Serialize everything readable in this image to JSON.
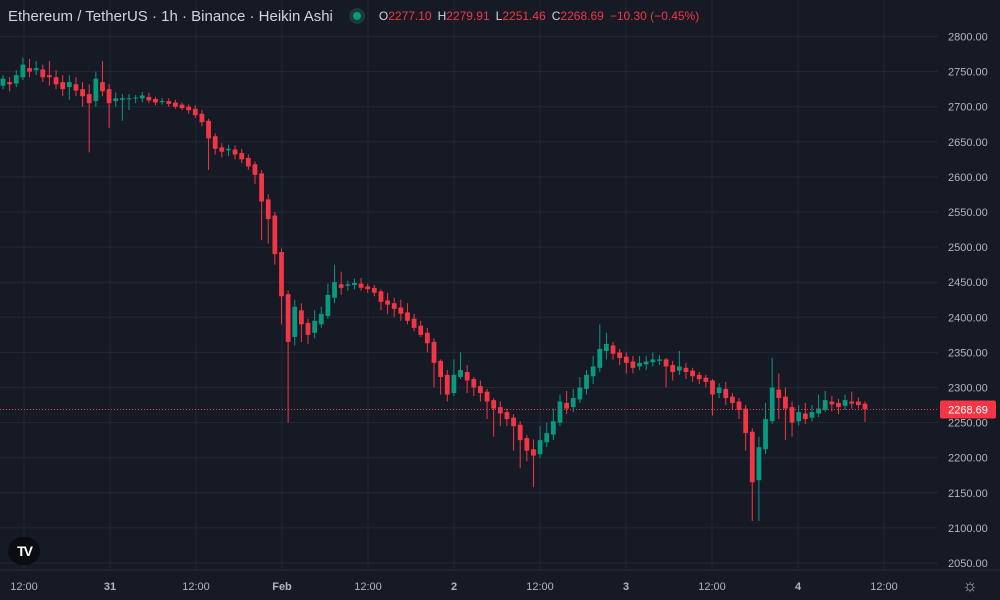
{
  "header": {
    "symbol_title": "Ethereum / TetherUS · 1h · Binance · Heikin Ashi",
    "ohlc": {
      "open_key": "O",
      "open": "2277.10",
      "high_key": "H",
      "high": "2279.91",
      "low_key": "L",
      "low": "2251.46",
      "close_key": "C",
      "close": "2268.69",
      "change": "−10.30 (−0.45%)"
    }
  },
  "colors": {
    "background": "#161a25",
    "grid": "#232734",
    "up": "#089981",
    "down": "#f23645",
    "text": "#d1d4dc",
    "axis_text": "#b2b5be"
  },
  "icons": {
    "logo": "tradingview-logo-icon",
    "settings": "gear-icon",
    "status": "live-dot-icon"
  },
  "chart_data": {
    "type": "candlestick",
    "style": "heikin-ashi",
    "interval": "1h",
    "y_axis": {
      "range": [
        2040,
        2815
      ],
      "ticks": [
        "2800.00",
        "2750.00",
        "2700.00",
        "2650.00",
        "2600.00",
        "2550.00",
        "2500.00",
        "2450.00",
        "2400.00",
        "2350.00",
        "2300.00",
        "2250.00",
        "2200.00",
        "2150.00",
        "2100.00",
        "2050.00"
      ],
      "scale": "linear",
      "position": "right"
    },
    "x_axis": {
      "ticks": [
        "12:00",
        "31",
        "12:00",
        "Feb",
        "12:00",
        "2",
        "12:00",
        "3",
        "12:00",
        "4",
        "12:00"
      ],
      "bold_ticks": [
        "31",
        "Feb",
        "2",
        "3",
        "4"
      ]
    },
    "last_price": "2268.69",
    "grid": true,
    "candles": [
      [
        2730,
        2740,
        2745,
        2725
      ],
      [
        2735,
        2732,
        2742,
        2722
      ],
      [
        2733,
        2745,
        2752,
        2728
      ],
      [
        2742,
        2760,
        2770,
        2738
      ],
      [
        2755,
        2750,
        2768,
        2742
      ],
      [
        2752,
        2755,
        2765,
        2745
      ],
      [
        2753,
        2742,
        2760,
        2735
      ],
      [
        2745,
        2742,
        2765,
        2730
      ],
      [
        2742,
        2732,
        2752,
        2725
      ],
      [
        2735,
        2725,
        2745,
        2715
      ],
      [
        2728,
        2735,
        2745,
        2710
      ],
      [
        2732,
        2723,
        2742,
        2715
      ],
      [
        2725,
        2715,
        2735,
        2700
      ],
      [
        2718,
        2705,
        2732,
        2635
      ],
      [
        2708,
        2740,
        2750,
        2700
      ],
      [
        2735,
        2722,
        2765,
        2715
      ],
      [
        2725,
        2705,
        2732,
        2670
      ],
      [
        2708,
        2712,
        2720,
        2700
      ],
      [
        2710,
        2712,
        2718,
        2680
      ],
      [
        2711,
        2712,
        2718,
        2695
      ],
      [
        2712,
        2713,
        2717,
        2705
      ],
      [
        2712,
        2716,
        2721,
        2706
      ],
      [
        2714,
        2709,
        2720,
        2705
      ],
      [
        2711,
        2706,
        2714,
        2702
      ],
      [
        2708,
        2708,
        2712,
        2703
      ],
      [
        2708,
        2704,
        2712,
        2700
      ],
      [
        2706,
        2700,
        2710,
        2697
      ],
      [
        2703,
        2698,
        2706,
        2695
      ],
      [
        2700,
        2695,
        2703,
        2690
      ],
      [
        2697,
        2688,
        2702,
        2684
      ],
      [
        2690,
        2678,
        2695,
        2672
      ],
      [
        2680,
        2655,
        2683,
        2610
      ],
      [
        2658,
        2640,
        2662,
        2632
      ],
      [
        2642,
        2636,
        2648,
        2628
      ],
      [
        2638,
        2640,
        2646,
        2630
      ],
      [
        2639,
        2632,
        2645,
        2625
      ],
      [
        2634,
        2625,
        2640,
        2620
      ],
      [
        2627,
        2615,
        2632,
        2610
      ],
      [
        2618,
        2603,
        2622,
        2590
      ],
      [
        2605,
        2565,
        2610,
        2510
      ],
      [
        2568,
        2540,
        2575,
        2505
      ],
      [
        2545,
        2490,
        2550,
        2475
      ],
      [
        2493,
        2430,
        2498,
        2390
      ],
      [
        2433,
        2365,
        2438,
        2250
      ],
      [
        2372,
        2415,
        2425,
        2360
      ],
      [
        2410,
        2390,
        2420,
        2365
      ],
      [
        2392,
        2375,
        2398,
        2362
      ],
      [
        2378,
        2395,
        2410,
        2370
      ],
      [
        2390,
        2405,
        2415,
        2385
      ],
      [
        2402,
        2432,
        2448,
        2398
      ],
      [
        2428,
        2450,
        2475,
        2420
      ],
      [
        2447,
        2442,
        2465,
        2432
      ],
      [
        2445,
        2447,
        2452,
        2438
      ],
      [
        2446,
        2449,
        2455,
        2440
      ],
      [
        2448,
        2442,
        2456,
        2438
      ],
      [
        2444,
        2440,
        2448,
        2435
      ],
      [
        2442,
        2435,
        2446,
        2430
      ],
      [
        2437,
        2422,
        2440,
        2410
      ],
      [
        2424,
        2418,
        2435,
        2405
      ],
      [
        2420,
        2412,
        2428,
        2400
      ],
      [
        2414,
        2405,
        2425,
        2395
      ],
      [
        2407,
        2395,
        2420,
        2390
      ],
      [
        2398,
        2385,
        2405,
        2380
      ],
      [
        2388,
        2375,
        2395,
        2372
      ],
      [
        2378,
        2363,
        2385,
        2350
      ],
      [
        2365,
        2335,
        2370,
        2300
      ],
      [
        2338,
        2315,
        2340,
        2290
      ],
      [
        2318,
        2290,
        2325,
        2280
      ],
      [
        2292,
        2318,
        2340,
        2288
      ],
      [
        2315,
        2325,
        2350,
        2312
      ],
      [
        2322,
        2310,
        2332,
        2292
      ],
      [
        2312,
        2300,
        2315,
        2288
      ],
      [
        2302,
        2292,
        2310,
        2280
      ],
      [
        2294,
        2280,
        2298,
        2255
      ],
      [
        2282,
        2270,
        2285,
        2230
      ],
      [
        2272,
        2263,
        2280,
        2245
      ],
      [
        2265,
        2255,
        2270,
        2245
      ],
      [
        2257,
        2245,
        2262,
        2210
      ],
      [
        2247,
        2225,
        2252,
        2185
      ],
      [
        2228,
        2210,
        2232,
        2195
      ],
      [
        2212,
        2203,
        2226,
        2158
      ],
      [
        2205,
        2225,
        2245,
        2200
      ],
      [
        2222,
        2235,
        2250,
        2215
      ],
      [
        2233,
        2252,
        2270,
        2225
      ],
      [
        2250,
        2280,
        2290,
        2245
      ],
      [
        2278,
        2270,
        2295,
        2262
      ],
      [
        2272,
        2285,
        2298,
        2265
      ],
      [
        2283,
        2300,
        2315,
        2278
      ],
      [
        2298,
        2318,
        2325,
        2290
      ],
      [
        2316,
        2330,
        2345,
        2305
      ],
      [
        2328,
        2355,
        2390,
        2322
      ],
      [
        2352,
        2362,
        2378,
        2340
      ],
      [
        2360,
        2348,
        2365,
        2340
      ],
      [
        2350,
        2342,
        2355,
        2332
      ],
      [
        2344,
        2335,
        2350,
        2320
      ],
      [
        2337,
        2328,
        2345,
        2320
      ],
      [
        2330,
        2335,
        2345,
        2325
      ],
      [
        2333,
        2337,
        2345,
        2325
      ],
      [
        2336,
        2340,
        2350,
        2330
      ],
      [
        2338,
        2340,
        2346,
        2332
      ],
      [
        2340,
        2330,
        2342,
        2300
      ],
      [
        2332,
        2322,
        2338,
        2310
      ],
      [
        2324,
        2330,
        2352,
        2318
      ],
      [
        2328,
        2322,
        2335,
        2312
      ],
      [
        2324,
        2316,
        2328,
        2308
      ],
      [
        2318,
        2312,
        2322,
        2305
      ],
      [
        2314,
        2308,
        2318,
        2300
      ],
      [
        2310,
        2290,
        2312,
        2260
      ],
      [
        2292,
        2300,
        2306,
        2285
      ],
      [
        2298,
        2285,
        2308,
        2275
      ],
      [
        2287,
        2278,
        2292,
        2268
      ],
      [
        2280,
        2268,
        2285,
        2255
      ],
      [
        2270,
        2235,
        2275,
        2210
      ],
      [
        2237,
        2165,
        2242,
        2110
      ],
      [
        2168,
        2215,
        2230,
        2110
      ],
      [
        2212,
        2255,
        2278,
        2205
      ],
      [
        2252,
        2300,
        2342,
        2248
      ],
      [
        2297,
        2285,
        2320,
        2255
      ],
      [
        2287,
        2270,
        2300,
        2225
      ],
      [
        2272,
        2250,
        2280,
        2230
      ],
      [
        2252,
        2265,
        2275,
        2246
      ],
      [
        2263,
        2255,
        2278,
        2248
      ],
      [
        2257,
        2265,
        2275,
        2252
      ],
      [
        2263,
        2270,
        2290,
        2258
      ],
      [
        2268,
        2282,
        2295,
        2265
      ],
      [
        2280,
        2276,
        2288,
        2266
      ],
      [
        2278,
        2272,
        2284,
        2262
      ],
      [
        2274,
        2282,
        2290,
        2268
      ],
      [
        2280,
        2277,
        2294,
        2270
      ],
      [
        2280,
        2275,
        2286,
        2270
      ],
      [
        2277,
        2269,
        2280,
        2251
      ]
    ]
  }
}
